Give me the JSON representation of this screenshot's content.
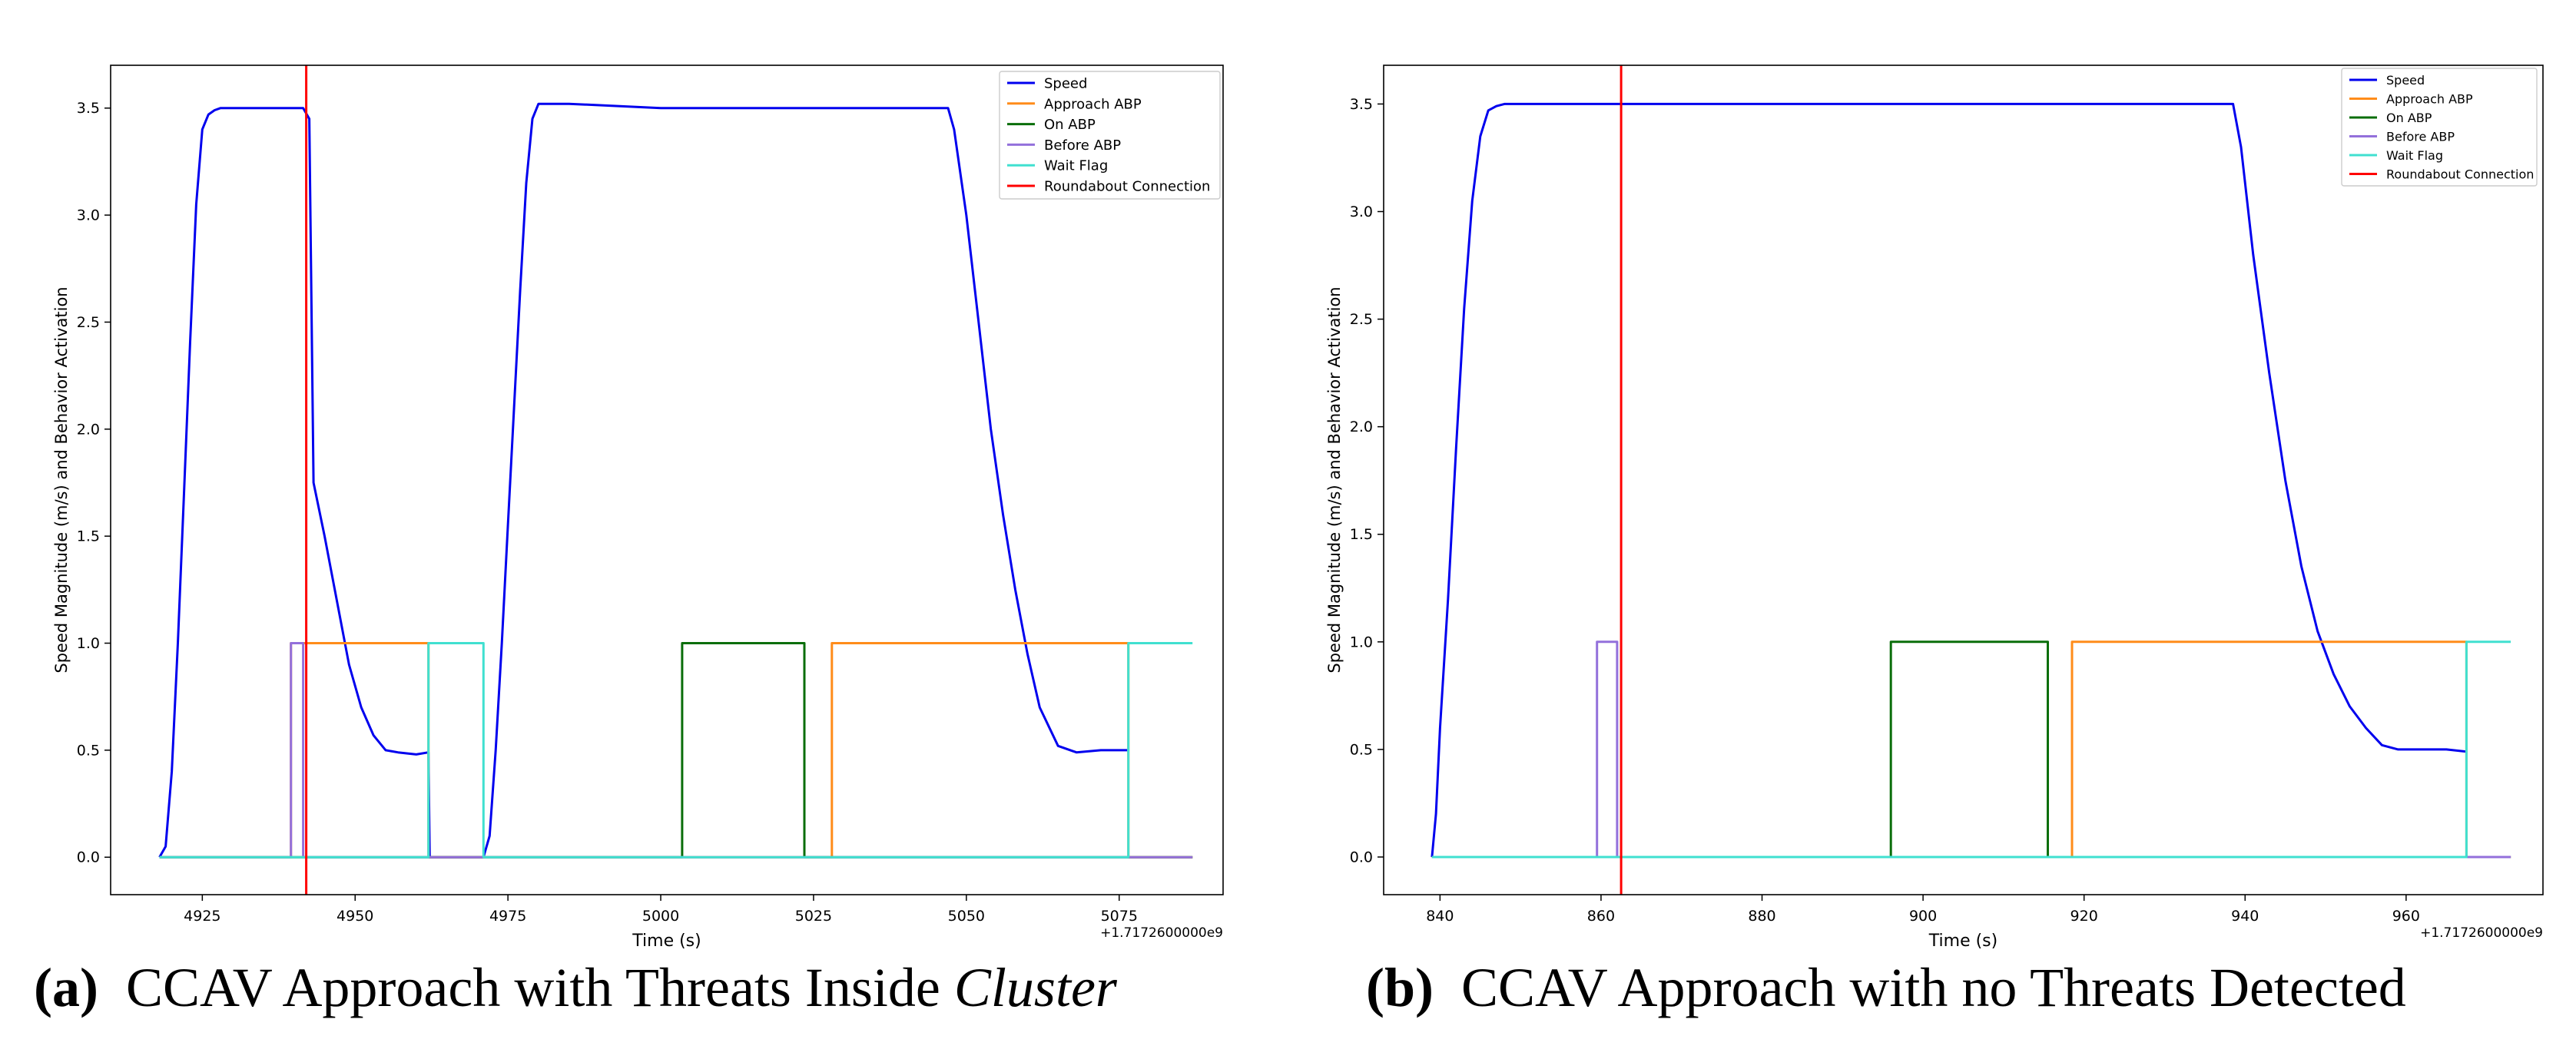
{
  "chart_data": [
    {
      "type": "line",
      "title": "",
      "xlabel": "Time (s)",
      "ylabel": "Speed Magnitude (m/s) and Behavior Activation",
      "x_offset_label": "+1.7172600000e9",
      "xlim": [
        4910,
        5092
      ],
      "ylim": [
        -0.175,
        3.7
      ],
      "xticks": [
        4925,
        4950,
        4975,
        5000,
        5025,
        5050,
        5075
      ],
      "yticks": [
        0.0,
        0.5,
        1.0,
        1.5,
        2.0,
        2.5,
        3.0,
        3.5
      ],
      "legend_position": "top-right",
      "series": [
        {
          "name": "Speed",
          "color": "#0000ee",
          "x": [
            4918,
            4919,
            4920,
            4921,
            4922,
            4923,
            4924,
            4925,
            4926,
            4927,
            4928,
            4930,
            4935,
            4941.5,
            4942.5,
            4943.2,
            4945,
            4947,
            4949,
            4951,
            4953,
            4955,
            4957,
            4960,
            4962,
            4962.2,
            4971,
            4972,
            4973,
            4974,
            4975,
            4976,
            4977,
            4978,
            4979,
            4980,
            4985,
            5000,
            5025,
            5047,
            5048,
            5050,
            5052,
            5054,
            5056,
            5058,
            5060,
            5062,
            5065,
            5068,
            5072,
            5076.5
          ],
          "values": [
            0.0,
            0.05,
            0.4,
            1.0,
            1.7,
            2.4,
            3.05,
            3.4,
            3.47,
            3.49,
            3.5,
            3.5,
            3.5,
            3.5,
            3.45,
            1.75,
            1.5,
            1.2,
            0.9,
            0.7,
            0.57,
            0.5,
            0.49,
            0.48,
            0.49,
            0.0,
            0.0,
            0.1,
            0.5,
            1.0,
            1.55,
            2.1,
            2.65,
            3.15,
            3.45,
            3.52,
            3.52,
            3.5,
            3.5,
            3.5,
            3.4,
            3.0,
            2.5,
            2.0,
            1.6,
            1.25,
            0.95,
            0.7,
            0.52,
            0.49,
            0.5,
            0.5
          ]
        },
        {
          "name": "Approach ABP",
          "color": "#ff8c1a",
          "x": [
            4918,
            4939.5,
            4939.5,
            4962,
            4962,
            5028,
            5028,
            5076.5,
            5076.5,
            5087
          ],
          "values": [
            0,
            0,
            1,
            1,
            0,
            0,
            1,
            1,
            0,
            0
          ]
        },
        {
          "name": "On ABP",
          "color": "#0a6e0a",
          "x": [
            4918,
            5003.5,
            5003.5,
            5023.5,
            5023.5,
            5087
          ],
          "values": [
            0,
            0,
            1,
            1,
            0,
            0
          ]
        },
        {
          "name": "Before ABP",
          "color": "#9370db",
          "x": [
            4918,
            4939.5,
            4939.5,
            4941.5,
            4941.5,
            4962,
            4962,
            4971,
            4971,
            5076.5,
            5076.5,
            5087
          ],
          "values": [
            0,
            0,
            1,
            1,
            0,
            0,
            0,
            0,
            0,
            0,
            0,
            0
          ]
        },
        {
          "name": "Wait Flag",
          "color": "#40e0d0",
          "x": [
            4918,
            4962,
            4962,
            4971,
            4971,
            5076.5,
            5076.5,
            5087
          ],
          "values": [
            0,
            0,
            1,
            1,
            0,
            0,
            1,
            1
          ]
        },
        {
          "name": "Roundabout Connection",
          "color": "#ff0000",
          "x": [
            4942,
            4942
          ],
          "values": [
            -0.175,
            3.7
          ]
        }
      ]
    },
    {
      "type": "line",
      "title": "",
      "xlabel": "Time (s)",
      "ylabel": "Speed Magnitude (m/s) and Behavior Activation",
      "x_offset_label": "+1.7172600000e9",
      "xlim": [
        833,
        977
      ],
      "ylim": [
        -0.175,
        3.68
      ],
      "xticks": [
        840,
        860,
        880,
        900,
        920,
        940,
        960
      ],
      "yticks": [
        0.0,
        0.5,
        1.0,
        1.5,
        2.0,
        2.5,
        3.0,
        3.5
      ],
      "legend_position": "top-right",
      "series": [
        {
          "name": "Speed",
          "color": "#0000ee",
          "x": [
            839,
            839.5,
            840,
            841,
            842,
            843,
            844,
            845,
            846,
            847,
            848,
            850,
            860,
            900,
            938.5,
            939.5,
            941,
            943,
            945,
            947,
            949,
            951,
            953,
            955,
            957,
            959,
            962,
            965,
            967.5
          ],
          "values": [
            0.0,
            0.2,
            0.6,
            1.2,
            1.9,
            2.55,
            3.05,
            3.35,
            3.47,
            3.49,
            3.5,
            3.5,
            3.5,
            3.5,
            3.5,
            3.3,
            2.8,
            2.25,
            1.75,
            1.35,
            1.05,
            0.85,
            0.7,
            0.6,
            0.52,
            0.5,
            0.5,
            0.5,
            0.49
          ]
        },
        {
          "name": "Approach ABP",
          "color": "#ff8c1a",
          "x": [
            839,
            918.5,
            918.5,
            967.5,
            967.5,
            973
          ],
          "values": [
            0,
            0,
            1,
            1,
            0,
            0
          ]
        },
        {
          "name": "On ABP",
          "color": "#0a6e0a",
          "x": [
            839,
            896,
            896,
            915.5,
            915.5,
            973
          ],
          "values": [
            0,
            0,
            1,
            1,
            0,
            0
          ]
        },
        {
          "name": "Before ABP",
          "color": "#9370db",
          "x": [
            839,
            859.5,
            859.5,
            862,
            862,
            973
          ],
          "values": [
            0,
            0,
            1,
            1,
            0,
            0
          ]
        },
        {
          "name": "Wait Flag",
          "color": "#40e0d0",
          "x": [
            839,
            967.5,
            967.5,
            973
          ],
          "values": [
            0,
            0,
            1,
            1
          ]
        },
        {
          "name": "Roundabout Connection",
          "color": "#ff0000",
          "x": [
            862.5,
            862.5
          ],
          "values": [
            -0.175,
            3.68
          ]
        }
      ]
    }
  ],
  "captions": [
    {
      "label": "(a)",
      "text": "CCAV Approach with Threats Inside",
      "italic": "Cluster"
    },
    {
      "label": "(b)",
      "text": "CCAV Approach with no Threats Detected",
      "italic": ""
    }
  ]
}
